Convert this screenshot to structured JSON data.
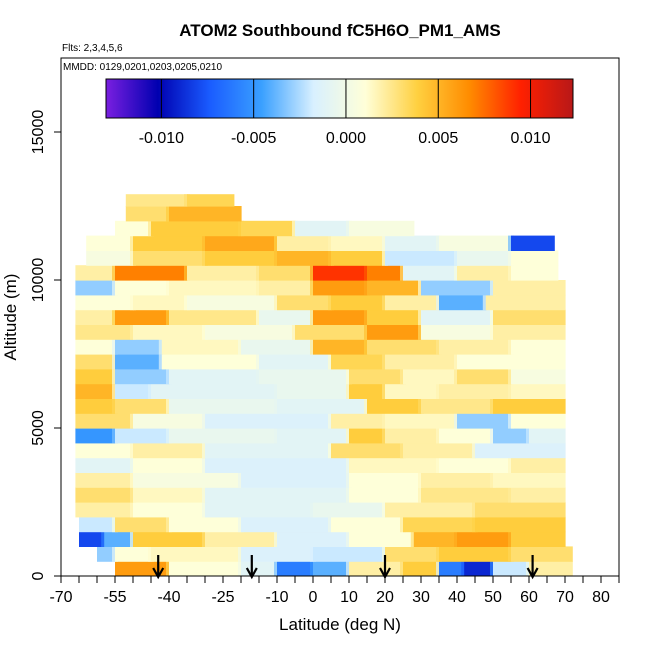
{
  "chart_data": {
    "type": "heatmap",
    "title": "ATOM2 Southbound fC5H6O_PM1_AMS",
    "subtitle_flights": "Flts: 2,3,4,5,6",
    "subtitle_dates": "MMDD: 0129,0201,0203,0205,0210",
    "xlabel": "Latitude (deg N)",
    "ylabel": "Altitude (m)",
    "xlim": [
      -70,
      85
    ],
    "ylim": [
      0,
      17500
    ],
    "x_ticks": [
      -70,
      -55,
      -40,
      -25,
      -10,
      0,
      10,
      20,
      30,
      40,
      50,
      60,
      70,
      80
    ],
    "x_tick_labels": [
      "-70",
      "-55",
      "-40",
      "-25",
      "-10",
      "0",
      "10",
      "20",
      "30",
      "40",
      "50",
      "60",
      "70",
      "80"
    ],
    "y_ticks": [
      0,
      5000,
      10000,
      15000
    ],
    "y_tick_labels": [
      "0",
      "5000",
      "10000",
      "15000"
    ],
    "colorbar": {
      "range": [
        -0.013,
        0.0123
      ],
      "ticks": [
        -0.01,
        -0.005,
        0.0,
        0.005,
        0.01
      ],
      "tick_labels": [
        "-0.010",
        "-0.005",
        "0.000",
        "0.005",
        "0.010"
      ],
      "colors": [
        "#7a1fe0",
        "#0000b0",
        "#1a5cff",
        "#3aa0ff",
        "#d8f0ff",
        "#ffffd8",
        "#ffd040",
        "#ff8c00",
        "#ff2000",
        "#b81818"
      ]
    },
    "flight_marker_latitudes": [
      -43,
      -17,
      20,
      61
    ],
    "rows": [
      {
        "alt": [
          0,
          500
        ],
        "lat": [
          -55,
          72
        ],
        "segments": [
          [
            -55,
            -40,
            0.006
          ],
          [
            -40,
            -20,
            0.001
          ],
          [
            -20,
            -10,
            -0.001
          ],
          [
            -10,
            0,
            -0.006
          ],
          [
            0,
            10,
            -0.004
          ],
          [
            10,
            25,
            0.002
          ],
          [
            25,
            35,
            0.004
          ],
          [
            35,
            42,
            -0.006
          ],
          [
            42,
            50,
            -0.009
          ],
          [
            50,
            60,
            -0.002
          ],
          [
            60,
            72,
            0.002
          ]
        ]
      },
      {
        "alt": [
          500,
          1000
        ],
        "lat": [
          -60,
          72
        ],
        "segments": [
          [
            -60,
            -55,
            -0.003
          ],
          [
            -55,
            -45,
            0.001
          ],
          [
            -45,
            -20,
            0.0015
          ],
          [
            -20,
            0,
            -0.0015
          ],
          [
            0,
            20,
            -0.002
          ],
          [
            20,
            35,
            0.003
          ],
          [
            35,
            55,
            0.004
          ],
          [
            55,
            72,
            0.003
          ]
        ]
      },
      {
        "alt": [
          1000,
          1500
        ],
        "lat": [
          -65,
          70
        ],
        "segments": [
          [
            -65,
            -58,
            -0.008
          ],
          [
            -58,
            -50,
            -0.004
          ],
          [
            -50,
            -30,
            0.004
          ],
          [
            -30,
            -10,
            0.002
          ],
          [
            -10,
            10,
            -0.0015
          ],
          [
            10,
            28,
            0.001
          ],
          [
            28,
            40,
            0.005
          ],
          [
            40,
            55,
            0.006
          ],
          [
            55,
            70,
            0.004
          ]
        ]
      },
      {
        "alt": [
          1500,
          2000
        ],
        "lat": [
          -65,
          70
        ],
        "segments": [
          [
            -65,
            -55,
            -0.002
          ],
          [
            -55,
            -40,
            0.003
          ],
          [
            -40,
            -20,
            0.001
          ],
          [
            -20,
            5,
            -0.0015
          ],
          [
            5,
            25,
            0.001
          ],
          [
            25,
            45,
            0.0035
          ],
          [
            45,
            70,
            0.004
          ]
        ]
      },
      {
        "alt": [
          2000,
          2500
        ],
        "lat": [
          -66,
          70
        ],
        "segments": [
          [
            -66,
            -50,
            0.002
          ],
          [
            -50,
            -30,
            0.001
          ],
          [
            -30,
            0,
            -0.001
          ],
          [
            0,
            20,
            -0.0005
          ],
          [
            20,
            45,
            0.002
          ],
          [
            45,
            70,
            0.003
          ]
        ]
      },
      {
        "alt": [
          2500,
          3000
        ],
        "lat": [
          -66,
          70
        ],
        "segments": [
          [
            -66,
            -50,
            0.003
          ],
          [
            -50,
            -30,
            0.0015
          ],
          [
            -30,
            10,
            -0.001
          ],
          [
            10,
            30,
            0.001
          ],
          [
            30,
            55,
            0.0025
          ],
          [
            55,
            70,
            0.002
          ]
        ]
      },
      {
        "alt": [
          3000,
          3500
        ],
        "lat": [
          -66,
          70
        ],
        "segments": [
          [
            -66,
            -50,
            0.002
          ],
          [
            -50,
            -20,
            0.0005
          ],
          [
            -20,
            10,
            -0.0015
          ],
          [
            10,
            30,
            0.001
          ],
          [
            30,
            50,
            0.002
          ],
          [
            50,
            70,
            0.0015
          ]
        ]
      },
      {
        "alt": [
          3500,
          4000
        ],
        "lat": [
          -66,
          70
        ],
        "segments": [
          [
            -66,
            -50,
            -0.001
          ],
          [
            -50,
            -30,
            0.001
          ],
          [
            -30,
            10,
            -0.0015
          ],
          [
            10,
            35,
            0.0015
          ],
          [
            35,
            55,
            0.001
          ],
          [
            55,
            70,
            0.002
          ]
        ]
      },
      {
        "alt": [
          4000,
          4500
        ],
        "lat": [
          -66,
          70
        ],
        "segments": [
          [
            -66,
            -50,
            0.001
          ],
          [
            -50,
            -30,
            0.002
          ],
          [
            -30,
            5,
            -0.001
          ],
          [
            5,
            25,
            0.003
          ],
          [
            25,
            45,
            0.002
          ],
          [
            45,
            70,
            -0.0015
          ]
        ]
      },
      {
        "alt": [
          4500,
          5000
        ],
        "lat": [
          -66,
          70
        ],
        "segments": [
          [
            -66,
            -55,
            -0.005
          ],
          [
            -55,
            -40,
            -0.002
          ],
          [
            -40,
            -10,
            -0.0005
          ],
          [
            -10,
            10,
            -0.001
          ],
          [
            10,
            20,
            0.004
          ],
          [
            20,
            35,
            0.002
          ],
          [
            35,
            50,
            0.001
          ],
          [
            50,
            60,
            -0.003
          ],
          [
            60,
            70,
            -0.001
          ]
        ]
      },
      {
        "alt": [
          5000,
          5500
        ],
        "lat": [
          -66,
          70
        ],
        "segments": [
          [
            -66,
            -50,
            0.003
          ],
          [
            -50,
            -30,
            0.0005
          ],
          [
            -30,
            5,
            -0.0015
          ],
          [
            5,
            20,
            0.002
          ],
          [
            20,
            40,
            0.0015
          ],
          [
            40,
            55,
            -0.003
          ],
          [
            55,
            70,
            0.001
          ]
        ]
      },
      {
        "alt": [
          5500,
          6000
        ],
        "lat": [
          -66,
          70
        ],
        "segments": [
          [
            -66,
            -55,
            0.004
          ],
          [
            -55,
            -40,
            0.003
          ],
          [
            -40,
            -10,
            -0.0005
          ],
          [
            -10,
            15,
            -0.001
          ],
          [
            15,
            30,
            0.004
          ],
          [
            30,
            50,
            0.0025
          ],
          [
            50,
            70,
            0.004
          ]
        ]
      },
      {
        "alt": [
          6000,
          6500
        ],
        "lat": [
          -66,
          70
        ],
        "segments": [
          [
            -66,
            -55,
            0.005
          ],
          [
            -55,
            -45,
            -0.002
          ],
          [
            -45,
            -10,
            -0.001
          ],
          [
            -10,
            10,
            -0.0005
          ],
          [
            10,
            20,
            0.004
          ],
          [
            20,
            35,
            0.0015
          ],
          [
            35,
            55,
            0.002
          ],
          [
            55,
            70,
            0.0015
          ]
        ]
      },
      {
        "alt": [
          6500,
          7000
        ],
        "lat": [
          -66,
          70
        ],
        "segments": [
          [
            -66,
            -55,
            0.004
          ],
          [
            -55,
            -40,
            -0.003
          ],
          [
            -40,
            -15,
            -0.001
          ],
          [
            -15,
            10,
            -0.0005
          ],
          [
            10,
            25,
            0.003
          ],
          [
            25,
            40,
            0.0015
          ],
          [
            40,
            55,
            0.003
          ],
          [
            55,
            70,
            0.0005
          ]
        ]
      },
      {
        "alt": [
          7000,
          7500
        ],
        "lat": [
          -66,
          70
        ],
        "segments": [
          [
            -66,
            -55,
            0.003
          ],
          [
            -55,
            -42,
            -0.004
          ],
          [
            -42,
            -15,
            0.001
          ],
          [
            -15,
            5,
            -0.001
          ],
          [
            5,
            20,
            0.0035
          ],
          [
            20,
            40,
            0.002
          ],
          [
            40,
            55,
            0.001
          ],
          [
            55,
            70,
            0.001
          ]
        ]
      },
      {
        "alt": [
          7500,
          8000
        ],
        "lat": [
          -66,
          70
        ],
        "segments": [
          [
            -66,
            -55,
            0.001
          ],
          [
            -55,
            -42,
            -0.003
          ],
          [
            -42,
            -20,
            0.0015
          ],
          [
            -20,
            0,
            -0.0005
          ],
          [
            0,
            15,
            0.005
          ],
          [
            15,
            35,
            0.003
          ],
          [
            35,
            55,
            0.002
          ],
          [
            55,
            70,
            0.001
          ]
        ]
      },
      {
        "alt": [
          8000,
          8500
        ],
        "lat": [
          -66,
          70
        ],
        "segments": [
          [
            -66,
            -50,
            0.0025
          ],
          [
            -50,
            -30,
            0.0015
          ],
          [
            -30,
            -5,
            0.0005
          ],
          [
            -5,
            15,
            0.003
          ],
          [
            15,
            30,
            0.006
          ],
          [
            30,
            50,
            0.0005
          ],
          [
            50,
            70,
            0.002
          ]
        ]
      },
      {
        "alt": [
          8500,
          9000
        ],
        "lat": [
          -66,
          70
        ],
        "segments": [
          [
            -66,
            -55,
            0.002
          ],
          [
            -55,
            -40,
            0.006
          ],
          [
            -40,
            -15,
            0.0025
          ],
          [
            -15,
            0,
            -0.0005
          ],
          [
            0,
            15,
            0.006
          ],
          [
            15,
            30,
            0.004
          ],
          [
            30,
            50,
            -0.001
          ],
          [
            50,
            70,
            0.003
          ]
        ]
      },
      {
        "alt": [
          9000,
          9500
        ],
        "lat": [
          -66,
          70
        ],
        "segments": [
          [
            -66,
            -50,
            0.001
          ],
          [
            -50,
            -35,
            0.0015
          ],
          [
            -35,
            -10,
            0.0005
          ],
          [
            -10,
            5,
            0.003
          ],
          [
            5,
            20,
            0.004
          ],
          [
            20,
            35,
            0.002
          ],
          [
            35,
            48,
            -0.004
          ],
          [
            48,
            70,
            0.002
          ]
        ]
      },
      {
        "alt": [
          9500,
          10000
        ],
        "lat": [
          -66,
          70
        ],
        "segments": [
          [
            -66,
            -55,
            -0.003
          ],
          [
            -55,
            -40,
            0.001
          ],
          [
            -40,
            -15,
            0.0015
          ],
          [
            -15,
            0,
            0.002
          ],
          [
            0,
            15,
            0.006
          ],
          [
            15,
            30,
            0.005
          ],
          [
            30,
            50,
            -0.003
          ],
          [
            50,
            70,
            0.002
          ]
        ]
      },
      {
        "alt": [
          10000,
          10500
        ],
        "lat": [
          -66,
          68
        ],
        "segments": [
          [
            -66,
            -55,
            0.002
          ],
          [
            -55,
            -35,
            0.007
          ],
          [
            -35,
            -15,
            0.002
          ],
          [
            -15,
            0,
            0.003
          ],
          [
            0,
            15,
            0.009
          ],
          [
            15,
            25,
            0.007
          ],
          [
            25,
            40,
            -0.001
          ],
          [
            40,
            55,
            0.002
          ],
          [
            55,
            68,
            0.001
          ]
        ]
      },
      {
        "alt": [
          10500,
          11000
        ],
        "lat": [
          -63,
          68
        ],
        "segments": [
          [
            -63,
            -50,
            0.0005
          ],
          [
            -50,
            -30,
            0.003
          ],
          [
            -30,
            -10,
            0.004
          ],
          [
            -10,
            5,
            0.005
          ],
          [
            5,
            20,
            0.004
          ],
          [
            20,
            40,
            -0.002
          ],
          [
            40,
            55,
            -0.0005
          ],
          [
            55,
            68,
            0.001
          ]
        ]
      },
      {
        "alt": [
          11000,
          11500
        ],
        "lat": [
          -63,
          67
        ],
        "segments": [
          [
            -63,
            -50,
            0.001
          ],
          [
            -50,
            -30,
            0.004
          ],
          [
            -30,
            -10,
            0.0055
          ],
          [
            -10,
            5,
            0.002
          ],
          [
            5,
            20,
            0.0015
          ],
          [
            20,
            35,
            -0.001
          ],
          [
            35,
            55,
            0.0005
          ],
          [
            55,
            67,
            -0.008
          ]
        ]
      },
      {
        "alt": [
          11500,
          12000
        ],
        "lat": [
          -55,
          28
        ],
        "segments": [
          [
            -55,
            -45,
            0.001
          ],
          [
            -45,
            -20,
            0.004
          ],
          [
            -20,
            -5,
            0.0035
          ],
          [
            -5,
            10,
            -0.001
          ],
          [
            10,
            28,
            0.0005
          ]
        ]
      },
      {
        "alt": [
          12000,
          12500
        ],
        "lat": [
          -52,
          -20
        ],
        "segments": [
          [
            -52,
            -40,
            0.003
          ],
          [
            -40,
            -20,
            0.005
          ]
        ]
      },
      {
        "alt": [
          12500,
          12900
        ],
        "lat": [
          -52,
          -22
        ],
        "segments": [
          [
            -52,
            -35,
            0.0025
          ],
          [
            -35,
            -22,
            0.0035
          ]
        ]
      }
    ]
  }
}
